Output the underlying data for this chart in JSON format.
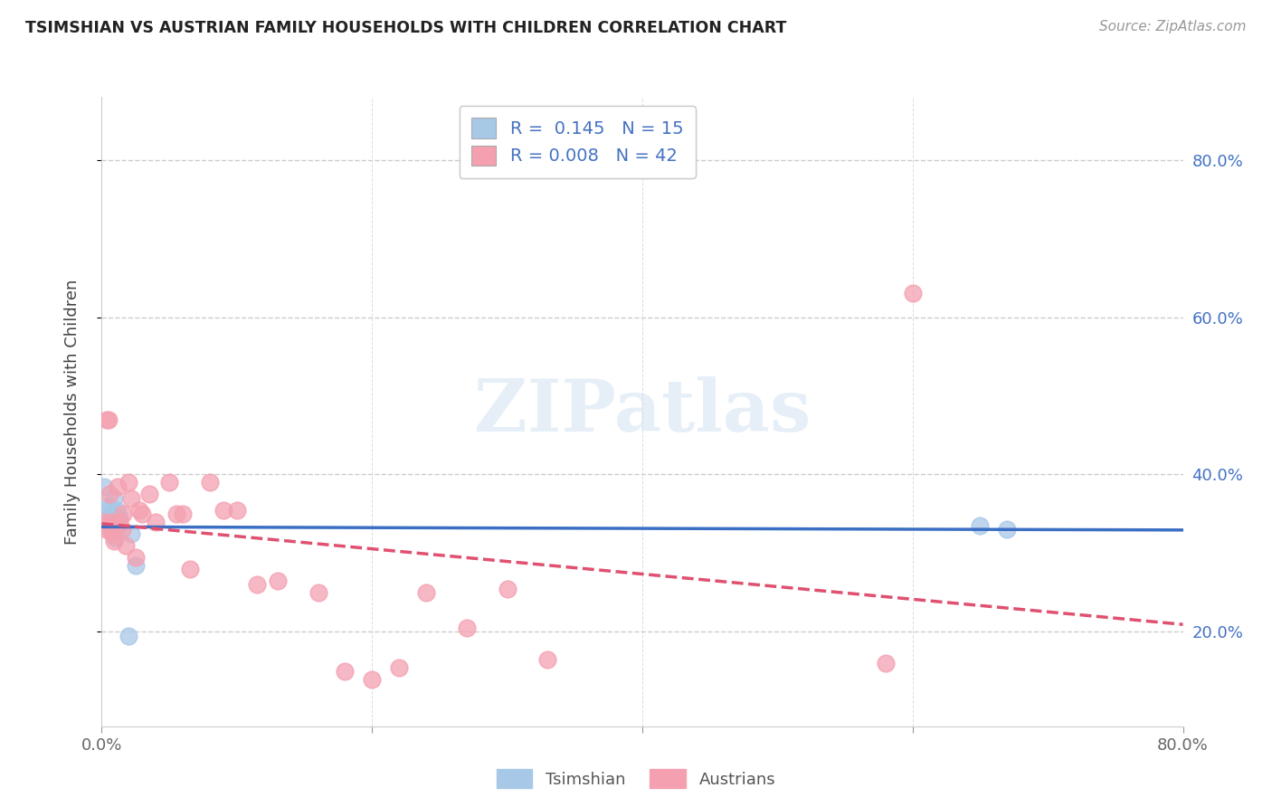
{
  "title": "TSIMSHIAN VS AUSTRIAN FAMILY HOUSEHOLDS WITH CHILDREN CORRELATION CHART",
  "source": "Source: ZipAtlas.com",
  "ylabel": "Family Households with Children",
  "xlim": [
    0.0,
    0.8
  ],
  "ylim": [
    0.08,
    0.88
  ],
  "legend_r1": "R =  0.145",
  "legend_n1": "N = 15",
  "legend_r2": "R = 0.008",
  "legend_n2": "N = 42",
  "tsimshian_color": "#a8c8e8",
  "austrian_color": "#f4a0b0",
  "tsimshian_line_color": "#3a6fc4",
  "austrian_line_color": "#e05070",
  "background_color": "#ffffff",
  "tsimshian_x": [
    0.002,
    0.004,
    0.005,
    0.006,
    0.007,
    0.008,
    0.009,
    0.01,
    0.011,
    0.013,
    0.02,
    0.022,
    0.025,
    0.65,
    0.67
  ],
  "tsimshian_y": [
    0.385,
    0.355,
    0.36,
    0.35,
    0.34,
    0.345,
    0.37,
    0.32,
    0.355,
    0.345,
    0.195,
    0.325,
    0.285,
    0.335,
    0.33
  ],
  "austrian_x": [
    0.001,
    0.002,
    0.003,
    0.004,
    0.005,
    0.006,
    0.007,
    0.008,
    0.009,
    0.01,
    0.011,
    0.012,
    0.013,
    0.015,
    0.016,
    0.018,
    0.02,
    0.022,
    0.025,
    0.028,
    0.03,
    0.035,
    0.04,
    0.05,
    0.055,
    0.06,
    0.065,
    0.08,
    0.09,
    0.1,
    0.115,
    0.13,
    0.16,
    0.18,
    0.2,
    0.22,
    0.24,
    0.27,
    0.3,
    0.33,
    0.58,
    0.6
  ],
  "austrian_y": [
    0.34,
    0.335,
    0.33,
    0.47,
    0.47,
    0.375,
    0.34,
    0.325,
    0.315,
    0.33,
    0.335,
    0.385,
    0.34,
    0.33,
    0.35,
    0.31,
    0.39,
    0.37,
    0.295,
    0.355,
    0.35,
    0.375,
    0.34,
    0.39,
    0.35,
    0.35,
    0.28,
    0.39,
    0.355,
    0.355,
    0.26,
    0.265,
    0.25,
    0.15,
    0.14,
    0.155,
    0.25,
    0.205,
    0.255,
    0.165,
    0.16,
    0.63
  ]
}
